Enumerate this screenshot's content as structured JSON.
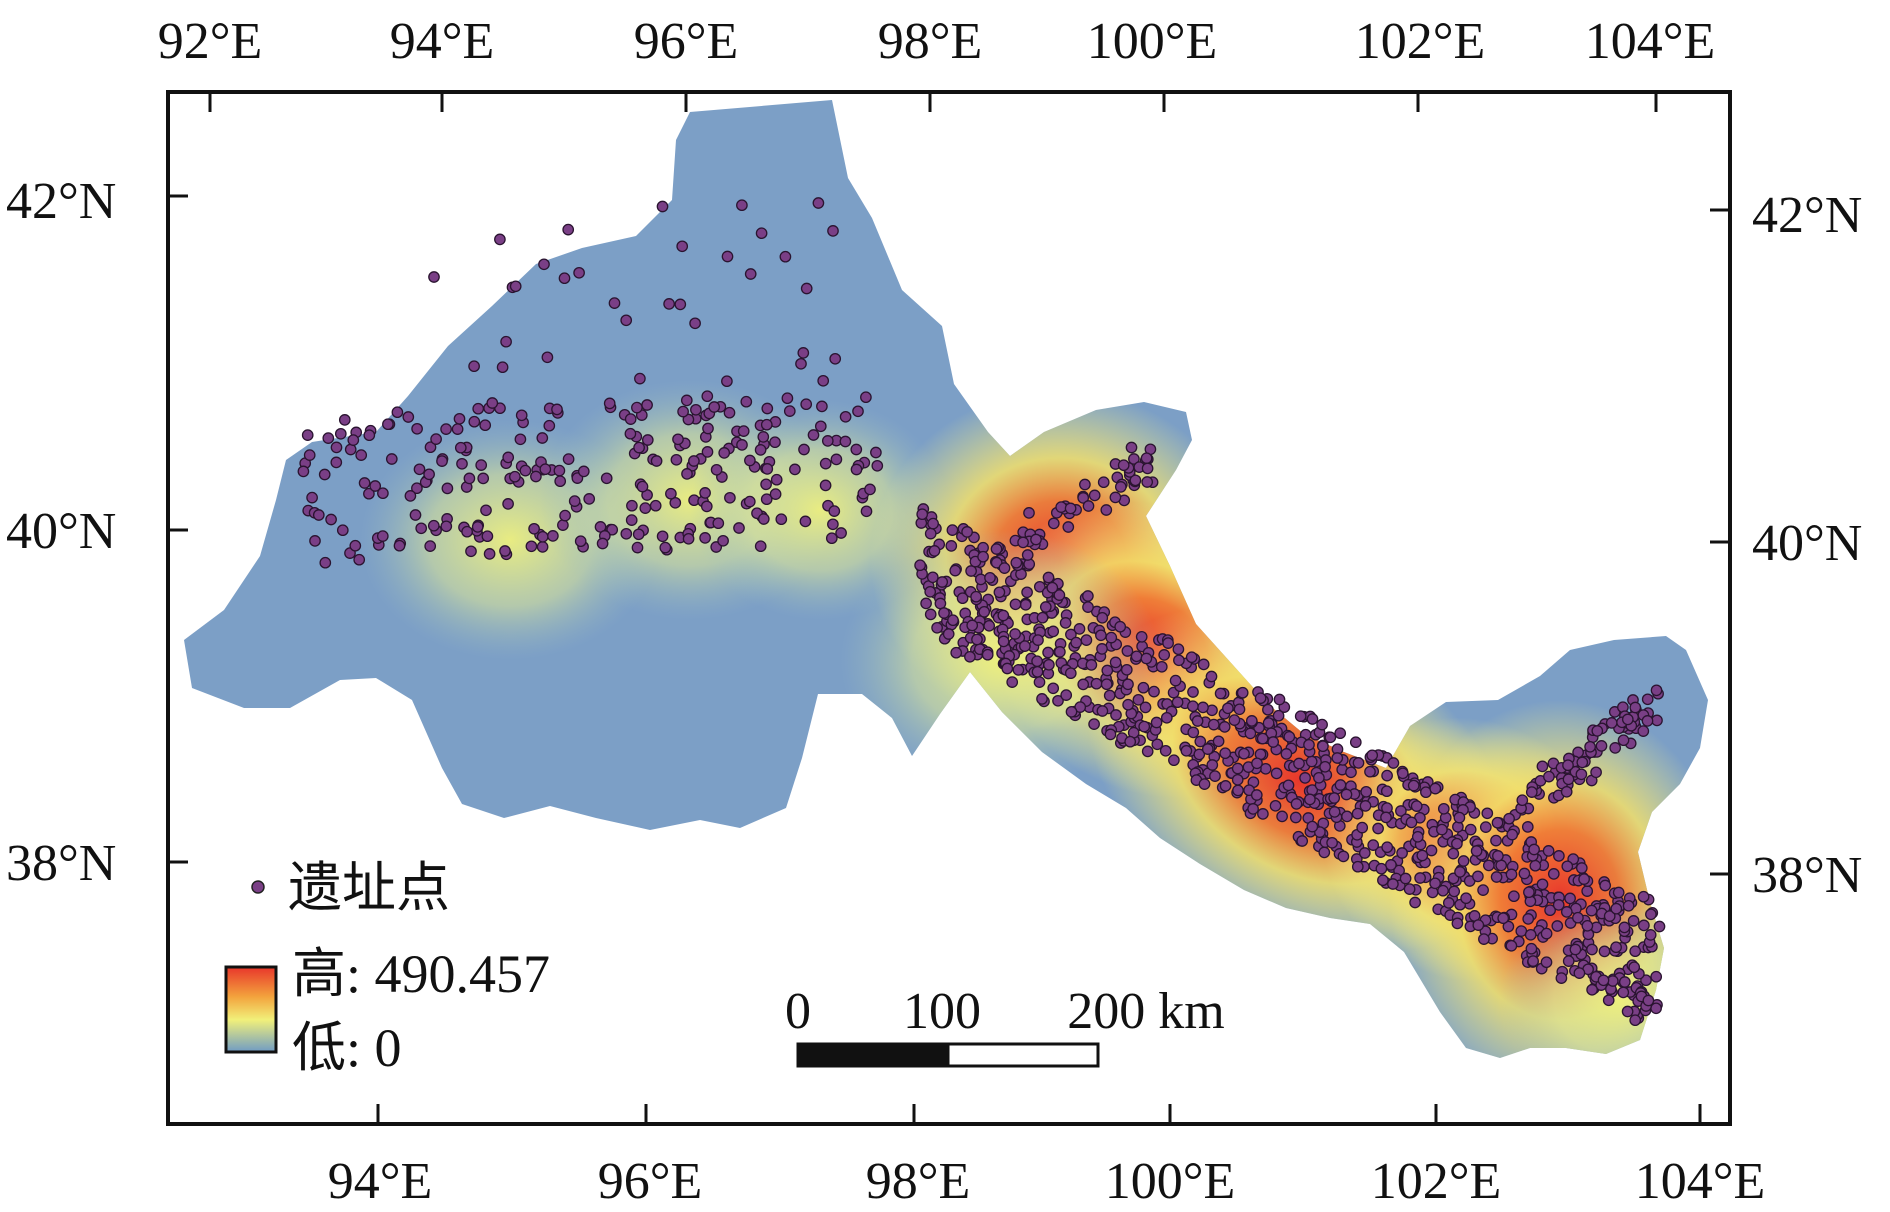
{
  "map": {
    "top_ticks": [
      "92°E",
      "94°E",
      "96°E",
      "98°E",
      "100°E",
      "102°E",
      "104°E"
    ],
    "bottom_ticks": [
      "94°E",
      "96°E",
      "98°E",
      "100°E",
      "102°E",
      "104°E"
    ],
    "left_ticks": [
      "42°N",
      "40°N",
      "38°N"
    ],
    "right_ticks": [
      "42°N",
      "40°N",
      "38°N"
    ]
  },
  "legend": {
    "point_label": "遗址点",
    "high_label": "高: 490.457",
    "low_label": "低: 0",
    "point_color": "#7a3f86",
    "ramp_colors": [
      "#e8362b",
      "#f3a33d",
      "#f1f07a",
      "#6f9bc5"
    ]
  },
  "scale_bar": {
    "labels": [
      "0",
      "100",
      "200 km"
    ]
  },
  "colors": {
    "region_base": "#7c9fc6",
    "hotspot_high": "#e8362b",
    "hotspot_mid": "#f5d454",
    "site_point": "#7a3f86"
  }
}
